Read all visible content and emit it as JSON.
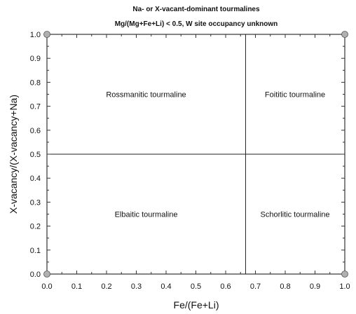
{
  "chart_data": {
    "type": "scatter",
    "title": "Na- or X-vacant-dominant tourmalines",
    "subtitle": "Mg/(Mg+Fe+Li) < 0.5, W site occupancy unknown",
    "xlabel": "Fe/(Fe+Li)",
    "ylabel": "X-vacancy/(X-vacancy+Na)",
    "xlim": [
      0,
      1
    ],
    "ylim": [
      0,
      1
    ],
    "x_ticks": [
      "0.0",
      "0.1",
      "0.2",
      "0.3",
      "0.4",
      "0.5",
      "0.6",
      "0.7",
      "0.8",
      "0.9",
      "1.0"
    ],
    "y_ticks": [
      "0.0",
      "0.1",
      "0.2",
      "0.3",
      "0.4",
      "0.5",
      "0.6",
      "0.7",
      "0.8",
      "0.9",
      "1.0"
    ],
    "grid": false,
    "boundaries": [
      {
        "orientation": "vertical",
        "value": 0.667
      },
      {
        "orientation": "horizontal",
        "value": 0.5
      }
    ],
    "fields": [
      {
        "label": "Rossmanitic tourmaline",
        "x": 0.333,
        "y": 0.75
      },
      {
        "label": "Foititic tourmaline",
        "x": 0.833,
        "y": 0.75
      },
      {
        "label": "Elbaitic tourmaline",
        "x": 0.333,
        "y": 0.25
      },
      {
        "label": "Schorlitic tourmaline",
        "x": 0.833,
        "y": 0.25
      }
    ],
    "points": [
      {
        "x": 0,
        "y": 0
      },
      {
        "x": 0,
        "y": 1
      },
      {
        "x": 1,
        "y": 0
      },
      {
        "x": 1,
        "y": 1
      }
    ],
    "point_color": "#b0b0b0"
  }
}
